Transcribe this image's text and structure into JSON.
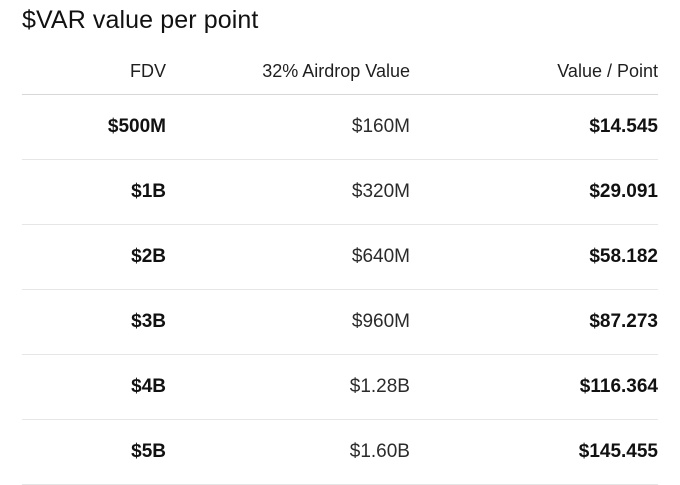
{
  "title": "$VAR value per point",
  "table": {
    "headers": [
      "FDV",
      "32% Airdrop Value",
      "Value / Point"
    ],
    "rows": [
      [
        "$500M",
        "$160M",
        "$14.545"
      ],
      [
        "$1B",
        "$320M",
        "$29.091"
      ],
      [
        "$2B",
        "$640M",
        "$58.182"
      ],
      [
        "$3B",
        "$960M",
        "$87.273"
      ],
      [
        "$4B",
        "$1.28B",
        "$116.364"
      ],
      [
        "$5B",
        "$1.60B",
        "$145.455"
      ]
    ]
  }
}
